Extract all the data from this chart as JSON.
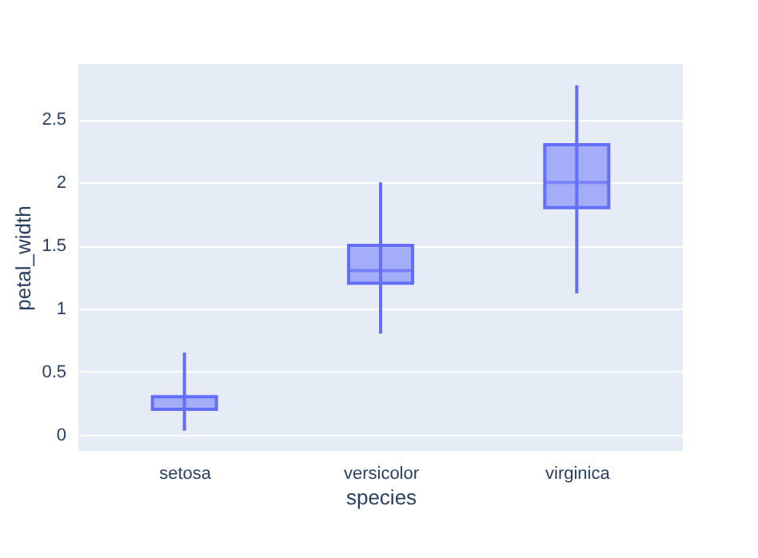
{
  "chart_data": {
    "type": "box",
    "xlabel": "species",
    "ylabel": "petal_width",
    "categories": [
      "setosa",
      "versicolor",
      "virginica"
    ],
    "boxes": [
      {
        "low": 0.03,
        "q1": 0.2,
        "median": 0.2,
        "q3": 0.3,
        "high": 0.65
      },
      {
        "low": 0.8,
        "q1": 1.2,
        "median": 1.3,
        "q3": 1.5,
        "high": 2.0
      },
      {
        "low": 1.12,
        "q1": 1.8,
        "median": 2.0,
        "q3": 2.3,
        "high": 2.77
      }
    ],
    "color": "#636efa",
    "ylim": [
      -0.13,
      2.94
    ],
    "yticks": [
      0,
      0.5,
      1,
      1.5,
      2,
      2.5
    ],
    "grid": "y"
  }
}
